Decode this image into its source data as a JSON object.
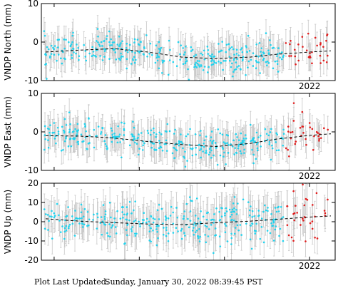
{
  "footer": {
    "label": "Plot Last Updated:",
    "timestamp": "Sunday, January 30, 2022 08:39:45 PST"
  },
  "colors": {
    "point": "#22d3ee",
    "recent_point": "#e11d1d",
    "error_bar": "#c8c8c8",
    "trend": "#000000"
  },
  "chart_data": [
    {
      "type": "scatter",
      "ylabel": "VNDP North (mm)",
      "ylim": [
        -10,
        10
      ],
      "yticks": [
        -10,
        0,
        10
      ],
      "xlim": [
        2018.85,
        2022.3
      ],
      "xtick_labels": [
        {
          "x": 2022.0,
          "label": "2022"
        }
      ],
      "trend": [
        [
          2018.9,
          -2.6
        ],
        [
          2019.3,
          -2.1
        ],
        [
          2019.7,
          -1.7
        ],
        [
          2020.1,
          -2.6
        ],
        [
          2020.5,
          -3.9
        ],
        [
          2020.9,
          -4.3
        ],
        [
          2021.3,
          -3.9
        ],
        [
          2021.6,
          -3.2
        ],
        [
          2022.0,
          -2.6
        ],
        [
          2022.25,
          -2.3
        ]
      ],
      "error_bar_mm": 3.5,
      "noise_mm": 2.0,
      "recent_start": 2021.72
    },
    {
      "type": "scatter",
      "ylabel": "VNDP East (mm)",
      "ylim": [
        -10,
        10
      ],
      "yticks": [
        -10,
        0,
        10
      ],
      "xlim": [
        2018.85,
        2022.3
      ],
      "xtick_labels": [
        {
          "x": 2022.0,
          "label": "2022"
        }
      ],
      "trend": [
        [
          2018.9,
          -1.0
        ],
        [
          2019.3,
          -1.1
        ],
        [
          2019.7,
          -1.6
        ],
        [
          2020.1,
          -2.5
        ],
        [
          2020.5,
          -3.3
        ],
        [
          2020.9,
          -3.8
        ],
        [
          2021.3,
          -3.0
        ],
        [
          2021.6,
          -1.9
        ],
        [
          2022.0,
          -0.9
        ],
        [
          2022.25,
          -0.5
        ]
      ],
      "error_bar_mm": 3.5,
      "noise_mm": 2.0,
      "recent_start": 2021.72
    },
    {
      "type": "scatter",
      "ylabel": "VNDP Up (mm)",
      "ylim": [
        -20,
        20
      ],
      "yticks": [
        -20,
        -10,
        0,
        10,
        20
      ],
      "xlim": [
        2018.85,
        2022.3
      ],
      "xtick_labels": [
        {
          "x": 2022.0,
          "label": "2022"
        }
      ],
      "trend": [
        [
          2018.9,
          1.5
        ],
        [
          2019.3,
          0.3
        ],
        [
          2019.7,
          -0.5
        ],
        [
          2020.1,
          -1.2
        ],
        [
          2020.5,
          -1.5
        ],
        [
          2020.9,
          -0.5
        ],
        [
          2021.3,
          0.3
        ],
        [
          2021.6,
          1.2
        ],
        [
          2022.0,
          2.4
        ],
        [
          2022.25,
          3.0
        ]
      ],
      "error_bar_mm": 8.0,
      "noise_mm": 5.5,
      "recent_start": 2021.72
    }
  ]
}
